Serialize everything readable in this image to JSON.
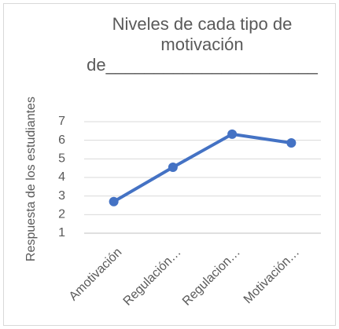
{
  "chart_data": {
    "type": "line",
    "title": "Niveles de cada tipo de motivación de______________________",
    "y_label": "Respuesta de los estudiantes",
    "categories": [
      "Amotivación",
      "Regulación…",
      "Regulacion…",
      "Motivación…"
    ],
    "series": [
      {
        "values": [
          2.7,
          4.55,
          6.33,
          5.86
        ],
        "color": "#4472c4"
      }
    ],
    "ylim": [
      1,
      7
    ],
    "yticks": [
      1,
      2,
      3,
      4,
      5,
      6,
      7
    ],
    "grid": true
  }
}
